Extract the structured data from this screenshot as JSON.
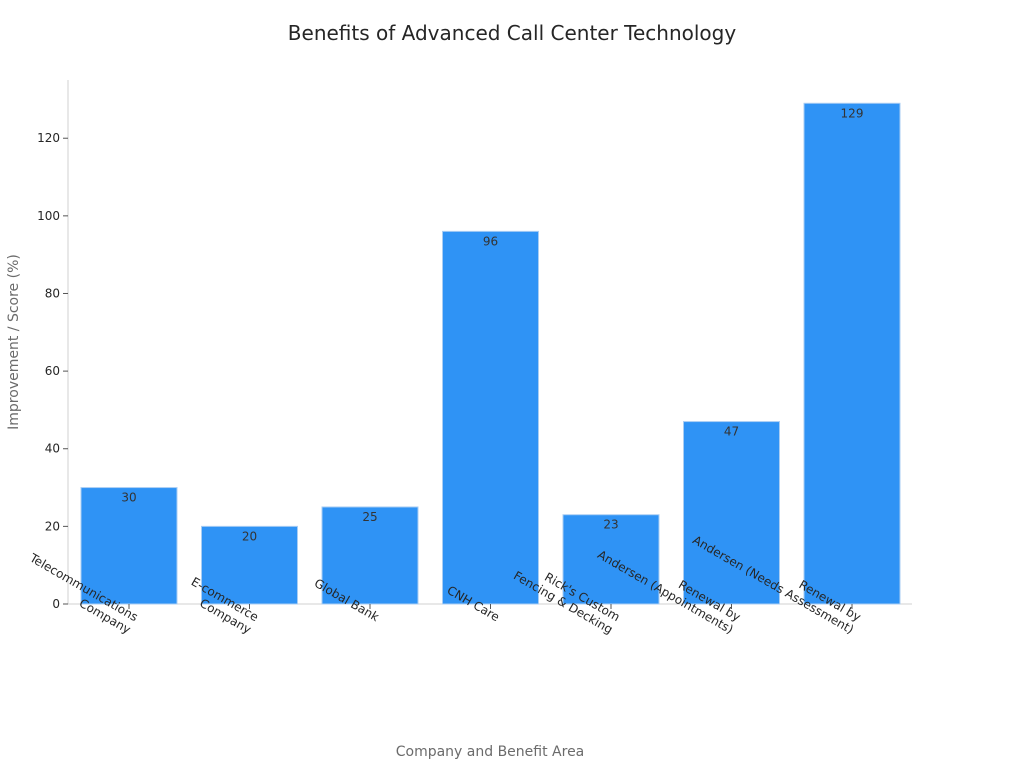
{
  "chart_data": {
    "type": "bar",
    "title": "Benefits of Advanced Call Center Technology",
    "xlabel": "Company and Benefit Area",
    "ylabel": "Improvement / Score (%)",
    "categories": [
      "Telecommunications\nCompany",
      "E-commerce\nCompany",
      "Global Bank",
      "CNH Care",
      "Rick's Custom\nFencing & Decking",
      "Renewal by\nAndersen (Appointments)",
      "Renewal by\nAndersen (Needs Assessment)"
    ],
    "values": [
      30,
      20,
      25,
      96,
      23,
      47,
      129
    ],
    "data_labels": [
      "30",
      "20",
      "25",
      "96",
      "23",
      "47",
      "129"
    ],
    "yticks": [
      "0",
      "20",
      "40",
      "60",
      "80",
      "100",
      "120"
    ],
    "ylim": [
      0,
      135
    ],
    "grid": false,
    "bar_color": "#2f93f5",
    "bar_edge_color": "#a9cdf3"
  }
}
